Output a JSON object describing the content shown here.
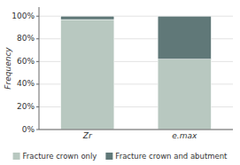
{
  "chart_data": {
    "type": "bar",
    "stacked": true,
    "categories": [
      "Zr",
      "e.max"
    ],
    "series": [
      {
        "name": "Fracture crown only",
        "color": "#b8c8c0",
        "values": [
          0.97,
          0.62
        ]
      },
      {
        "name": "Fracture crown and abutment",
        "color": "#607878",
        "values": [
          0.03,
          0.38
        ]
      }
    ],
    "ylabel": "Frequency",
    "ylim": [
      0,
      1.08
    ],
    "yticks": [
      {
        "value": 0,
        "label": "0%"
      },
      {
        "value": 0.2,
        "label": "20%"
      },
      {
        "value": 0.4,
        "label": "40%"
      },
      {
        "value": 0.6,
        "label": "60%"
      },
      {
        "value": 0.8,
        "label": "80%"
      },
      {
        "value": 1.0,
        "label": "100%"
      }
    ],
    "grid": true,
    "legend": "bottom"
  }
}
